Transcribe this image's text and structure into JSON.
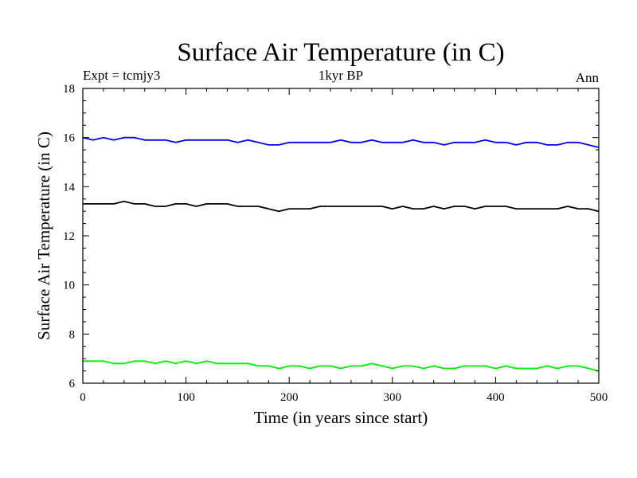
{
  "chart_data": {
    "type": "line",
    "title": "Surface Air Temperature (in C)",
    "subtitle_left": "Expt = tcmjy3",
    "subtitle_center": "1kyr BP",
    "subtitle_right": "Ann",
    "xlabel": "Time (in years since start)",
    "ylabel": "Surface Air Temperature (in C)",
    "xlim": [
      0,
      500
    ],
    "ylim": [
      6,
      18
    ],
    "x_ticks": [
      0,
      100,
      200,
      300,
      400,
      500
    ],
    "y_ticks": [
      6,
      8,
      10,
      12,
      14,
      16,
      18
    ],
    "grid": false,
    "x": [
      0,
      10,
      20,
      30,
      40,
      50,
      60,
      70,
      80,
      90,
      100,
      110,
      120,
      130,
      140,
      150,
      160,
      170,
      180,
      190,
      200,
      210,
      220,
      230,
      240,
      250,
      260,
      270,
      280,
      290,
      300,
      310,
      320,
      330,
      340,
      350,
      360,
      370,
      380,
      390,
      400,
      410,
      420,
      430,
      440,
      450,
      460,
      470,
      480,
      490,
      500
    ],
    "series": [
      {
        "color": "#0000ee",
        "values": [
          16.0,
          15.9,
          16.0,
          15.9,
          16.0,
          16.0,
          15.9,
          15.9,
          15.9,
          15.8,
          15.9,
          15.9,
          15.9,
          15.9,
          15.9,
          15.8,
          15.9,
          15.8,
          15.7,
          15.7,
          15.8,
          15.8,
          15.8,
          15.8,
          15.8,
          15.9,
          15.8,
          15.8,
          15.9,
          15.8,
          15.8,
          15.8,
          15.9,
          15.8,
          15.8,
          15.7,
          15.8,
          15.8,
          15.8,
          15.9,
          15.8,
          15.8,
          15.7,
          15.8,
          15.8,
          15.7,
          15.7,
          15.8,
          15.8,
          15.7,
          15.6
        ]
      },
      {
        "color": "#000000",
        "values": [
          13.3,
          13.3,
          13.3,
          13.3,
          13.4,
          13.3,
          13.3,
          13.2,
          13.2,
          13.3,
          13.3,
          13.2,
          13.3,
          13.3,
          13.3,
          13.2,
          13.2,
          13.2,
          13.1,
          13.0,
          13.1,
          13.1,
          13.1,
          13.2,
          13.2,
          13.2,
          13.2,
          13.2,
          13.2,
          13.2,
          13.1,
          13.2,
          13.1,
          13.1,
          13.2,
          13.1,
          13.2,
          13.2,
          13.1,
          13.2,
          13.2,
          13.2,
          13.1,
          13.1,
          13.1,
          13.1,
          13.1,
          13.2,
          13.1,
          13.1,
          13.0
        ]
      },
      {
        "color": "#00ee00",
        "values": [
          6.9,
          6.9,
          6.9,
          6.8,
          6.8,
          6.9,
          6.9,
          6.8,
          6.9,
          6.8,
          6.9,
          6.8,
          6.9,
          6.8,
          6.8,
          6.8,
          6.8,
          6.7,
          6.7,
          6.6,
          6.7,
          6.7,
          6.6,
          6.7,
          6.7,
          6.6,
          6.7,
          6.7,
          6.8,
          6.7,
          6.6,
          6.7,
          6.7,
          6.6,
          6.7,
          6.6,
          6.6,
          6.7,
          6.7,
          6.7,
          6.6,
          6.7,
          6.6,
          6.6,
          6.6,
          6.7,
          6.6,
          6.7,
          6.7,
          6.6,
          6.5
        ]
      }
    ]
  }
}
